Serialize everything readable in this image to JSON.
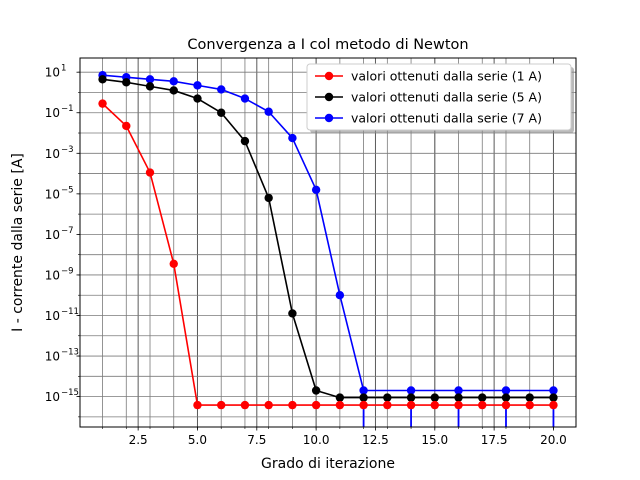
{
  "chart_data": {
    "type": "line",
    "title": "Convergenza a I col metodo di Newton",
    "xlabel": "Grado di iterazione",
    "ylabel": "I - corrente dalla serie [A]",
    "yscale": "log",
    "xlim": [
      0.05,
      20.95
    ],
    "ylim_log10": [
      -16.5,
      1.7
    ],
    "xticks": [
      2.5,
      5.0,
      7.5,
      10.0,
      12.5,
      15.0,
      17.5,
      20.0
    ],
    "xtick_labels": [
      "2.5",
      "5.0",
      "7.5",
      "10.0",
      "12.5",
      "15.0",
      "17.5",
      "20.0"
    ],
    "yticks_exp": [
      1,
      -1,
      -3,
      -5,
      -7,
      -9,
      -11,
      -13,
      -15
    ],
    "grid": true,
    "legend_position": "upper right",
    "series": [
      {
        "name": "valori ottenuti dalla serie (1 A)",
        "color": "#ff0000",
        "x": [
          1,
          2,
          3,
          4,
          5,
          6,
          7,
          8,
          9,
          10,
          11,
          12,
          13,
          14,
          15,
          16,
          17,
          18,
          19,
          20
        ],
        "log10_y": [
          -0.55,
          -1.65,
          -3.95,
          -8.45,
          -15.42,
          -15.42,
          -15.42,
          -15.42,
          -15.42,
          -15.42,
          -15.42,
          -15.42,
          -15.42,
          -15.42,
          -15.42,
          -15.42,
          -15.42,
          -15.42,
          -15.42,
          -15.42
        ],
        "drops_to_zero_at": []
      },
      {
        "name": "valori ottenuti dalla serie (5 A)",
        "color": "#000000",
        "x": [
          1,
          2,
          3,
          4,
          5,
          6,
          7,
          8,
          9,
          10,
          11,
          12,
          13,
          14,
          15,
          16,
          17,
          18,
          19,
          20
        ],
        "log10_y": [
          0.65,
          0.5,
          0.3,
          0.1,
          -0.3,
          -1.0,
          -2.4,
          -5.2,
          -10.9,
          -14.7,
          -15.05,
          -15.05,
          -15.05,
          -15.05,
          -15.05,
          -15.05,
          -15.05,
          -15.05,
          -15.05,
          -15.05
        ],
        "drops_to_zero_at": []
      },
      {
        "name": "valori ottenuti dalla serie (7 A)",
        "color": "#0000ff",
        "x": [
          1,
          2,
          3,
          4,
          5,
          6,
          7,
          8,
          9,
          10,
          11,
          12,
          14,
          16,
          18,
          20
        ],
        "log10_y": [
          0.85,
          0.75,
          0.65,
          0.55,
          0.35,
          0.15,
          -0.3,
          -0.95,
          -2.25,
          -4.8,
          -10.0,
          -14.7,
          -14.7,
          -14.7,
          -14.7,
          -14.7
        ],
        "drops_to_zero_at": [
          12,
          14,
          16,
          18,
          20
        ]
      }
    ]
  }
}
